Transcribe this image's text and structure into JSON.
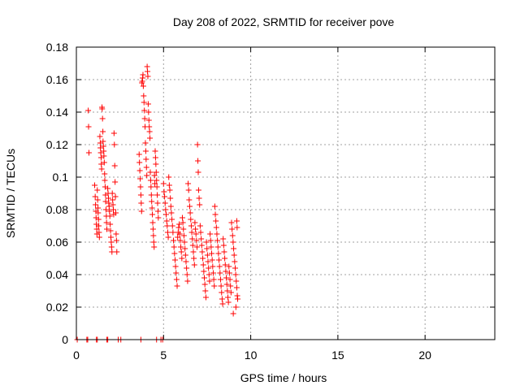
{
  "chart_data": {
    "type": "scatter",
    "title": "Day 208 of 2022, SRMTID for receiver pove",
    "xlabel": "GPS time / hours",
    "ylabel": "SRMTID / TECUs",
    "xlim": [
      0,
      24
    ],
    "ylim": [
      0,
      0.18
    ],
    "xticks": [
      0,
      5,
      10,
      15,
      20
    ],
    "xtick_labels": [
      "0",
      "5",
      "10",
      "15",
      "20"
    ],
    "yticks": [
      0,
      0.02,
      0.04,
      0.06,
      0.08,
      0.1,
      0.12,
      0.14,
      0.16,
      0.18
    ],
    "ytick_labels": [
      "0",
      "0.02",
      "0.04",
      "0.06",
      "0.08",
      "0.1",
      "0.12",
      "0.14",
      "0.16",
      "0.18"
    ],
    "grid": true,
    "marker": "+",
    "color": "#ff0000",
    "series": [
      {
        "name": "SRMTID",
        "points": [
          [
            0.05,
            0
          ],
          [
            0.6,
            0
          ],
          [
            0.65,
            0
          ],
          [
            1.15,
            0
          ],
          [
            1.2,
            0
          ],
          [
            1.75,
            0
          ],
          [
            1.8,
            0
          ],
          [
            2.4,
            0
          ],
          [
            2.55,
            0
          ],
          [
            3.7,
            0
          ],
          [
            4.6,
            0
          ],
          [
            4.85,
            0
          ],
          [
            4.95,
            0
          ],
          [
            0.68,
            0.141
          ],
          [
            0.7,
            0.131
          ],
          [
            0.72,
            0.115
          ],
          [
            1.05,
            0.095
          ],
          [
            1.08,
            0.088
          ],
          [
            1.1,
            0.083
          ],
          [
            1.12,
            0.079
          ],
          [
            1.13,
            0.075
          ],
          [
            1.15,
            0.071
          ],
          [
            1.17,
            0.068
          ],
          [
            1.18,
            0.065
          ],
          [
            1.2,
            0.092
          ],
          [
            1.22,
            0.086
          ],
          [
            1.24,
            0.081
          ],
          [
            1.25,
            0.078
          ],
          [
            1.27,
            0.074
          ],
          [
            1.28,
            0.07
          ],
          [
            1.3,
            0.066
          ],
          [
            1.32,
            0.063
          ],
          [
            1.35,
            0.125
          ],
          [
            1.37,
            0.121
          ],
          [
            1.38,
            0.118
          ],
          [
            1.4,
            0.115
          ],
          [
            1.42,
            0.112
          ],
          [
            1.43,
            0.108
          ],
          [
            1.45,
            0.105
          ],
          [
            1.47,
            0.143
          ],
          [
            1.48,
            0.142
          ],
          [
            1.5,
            0.136
          ],
          [
            1.52,
            0.128
          ],
          [
            1.53,
            0.122
          ],
          [
            1.55,
            0.119
          ],
          [
            1.57,
            0.116
          ],
          [
            1.58,
            0.113
          ],
          [
            1.6,
            0.109
          ],
          [
            1.62,
            0.102
          ],
          [
            1.63,
            0.098
          ],
          [
            1.65,
            0.094
          ],
          [
            1.67,
            0.089
          ],
          [
            1.68,
            0.085
          ],
          [
            1.7,
            0.08
          ],
          [
            1.72,
            0.076
          ],
          [
            1.73,
            0.072
          ],
          [
            1.75,
            0.068
          ],
          [
            1.8,
            0.093
          ],
          [
            1.82,
            0.09
          ],
          [
            1.84,
            0.087
          ],
          [
            1.86,
            0.084
          ],
          [
            1.88,
            0.082
          ],
          [
            1.9,
            0.079
          ],
          [
            1.92,
            0.076
          ],
          [
            1.94,
            0.071
          ],
          [
            1.96,
            0.067
          ],
          [
            1.98,
            0.063
          ],
          [
            2.0,
            0.06
          ],
          [
            2.02,
            0.057
          ],
          [
            2.04,
            0.054
          ],
          [
            2.06,
            0.09
          ],
          [
            2.08,
            0.086
          ],
          [
            2.1,
            0.083
          ],
          [
            2.12,
            0.08
          ],
          [
            2.14,
            0.077
          ],
          [
            2.16,
            0.127
          ],
          [
            2.18,
            0.12
          ],
          [
            2.2,
            0.107
          ],
          [
            2.22,
            0.097
          ],
          [
            2.24,
            0.088
          ],
          [
            2.26,
            0.078
          ],
          [
            2.28,
            0.065
          ],
          [
            2.3,
            0.061
          ],
          [
            2.32,
            0.054
          ],
          [
            3.6,
            0.114
          ],
          [
            3.62,
            0.109
          ],
          [
            3.64,
            0.104
          ],
          [
            3.66,
            0.099
          ],
          [
            3.68,
            0.094
          ],
          [
            3.7,
            0.089
          ],
          [
            3.72,
            0.084
          ],
          [
            3.74,
            0.079
          ],
          [
            3.76,
            0.158
          ],
          [
            3.78,
            0.159
          ],
          [
            3.8,
            0.161
          ],
          [
            3.82,
            0.163
          ],
          [
            3.84,
            0.156
          ],
          [
            3.86,
            0.15
          ],
          [
            3.88,
            0.146
          ],
          [
            3.9,
            0.141
          ],
          [
            3.92,
            0.136
          ],
          [
            3.94,
            0.131
          ],
          [
            3.96,
            0.121
          ],
          [
            3.98,
            0.116
          ],
          [
            4.0,
            0.111
          ],
          [
            4.02,
            0.106
          ],
          [
            4.04,
            0.101
          ],
          [
            4.06,
            0.168
          ],
          [
            4.08,
            0.165
          ],
          [
            4.1,
            0.162
          ],
          [
            4.12,
            0.145
          ],
          [
            4.14,
            0.14
          ],
          [
            4.16,
            0.135
          ],
          [
            4.18,
            0.131
          ],
          [
            4.2,
            0.128
          ],
          [
            4.22,
            0.124
          ],
          [
            4.24,
            0.103
          ],
          [
            4.26,
            0.098
          ],
          [
            4.28,
            0.094
          ],
          [
            4.3,
            0.089
          ],
          [
            4.32,
            0.085
          ],
          [
            4.34,
            0.081
          ],
          [
            4.36,
            0.077
          ],
          [
            4.38,
            0.072
          ],
          [
            4.4,
            0.068
          ],
          [
            4.42,
            0.064
          ],
          [
            4.44,
            0.06
          ],
          [
            4.46,
            0.057
          ],
          [
            4.48,
            0.101
          ],
          [
            4.5,
            0.096
          ],
          [
            4.52,
            0.116
          ],
          [
            4.54,
            0.112
          ],
          [
            4.56,
            0.108
          ],
          [
            4.58,
            0.103
          ],
          [
            4.6,
            0.098
          ],
          [
            4.62,
            0.094
          ],
          [
            4.64,
            0.089
          ],
          [
            4.66,
            0.084
          ],
          [
            4.68,
            0.079
          ],
          [
            4.7,
            0.075
          ],
          [
            5.0,
            0.096
          ],
          [
            5.03,
            0.091
          ],
          [
            5.06,
            0.088
          ],
          [
            5.09,
            0.084
          ],
          [
            5.12,
            0.08
          ],
          [
            5.15,
            0.077
          ],
          [
            5.18,
            0.073
          ],
          [
            5.21,
            0.07
          ],
          [
            5.24,
            0.066
          ],
          [
            5.27,
            0.063
          ],
          [
            5.3,
            0.1
          ],
          [
            5.33,
            0.095
          ],
          [
            5.36,
            0.092
          ],
          [
            5.39,
            0.087
          ],
          [
            5.42,
            0.082
          ],
          [
            5.45,
            0.078
          ],
          [
            5.48,
            0.074
          ],
          [
            5.51,
            0.07
          ],
          [
            5.54,
            0.066
          ],
          [
            5.57,
            0.061
          ],
          [
            5.6,
            0.057
          ],
          [
            5.63,
            0.053
          ],
          [
            5.66,
            0.049
          ],
          [
            5.69,
            0.045
          ],
          [
            5.72,
            0.041
          ],
          [
            5.75,
            0.037
          ],
          [
            5.78,
            0.033
          ],
          [
            5.81,
            0.063
          ],
          [
            5.84,
            0.066
          ],
          [
            5.87,
            0.069
          ],
          [
            5.9,
            0.071
          ],
          [
            5.93,
            0.065
          ],
          [
            5.96,
            0.061
          ],
          [
            5.99,
            0.057
          ],
          [
            6.02,
            0.054
          ],
          [
            6.05,
            0.05
          ],
          [
            6.08,
            0.075
          ],
          [
            6.11,
            0.072
          ],
          [
            6.14,
            0.068
          ],
          [
            6.17,
            0.064
          ],
          [
            6.2,
            0.06
          ],
          [
            6.23,
            0.056
          ],
          [
            6.26,
            0.052
          ],
          [
            6.29,
            0.048
          ],
          [
            6.32,
            0.044
          ],
          [
            6.35,
            0.04
          ],
          [
            6.38,
            0.036
          ],
          [
            6.41,
            0.096
          ],
          [
            6.44,
            0.092
          ],
          [
            6.47,
            0.086
          ],
          [
            6.5,
            0.082
          ],
          [
            6.53,
            0.078
          ],
          [
            6.56,
            0.074
          ],
          [
            6.59,
            0.07
          ],
          [
            6.62,
            0.066
          ],
          [
            6.65,
            0.062
          ],
          [
            6.68,
            0.058
          ],
          [
            6.71,
            0.054
          ],
          [
            6.74,
            0.05
          ],
          [
            6.77,
            0.046
          ],
          [
            6.8,
            0.072
          ],
          [
            6.83,
            0.068
          ],
          [
            6.86,
            0.065
          ],
          [
            6.89,
            0.061
          ],
          [
            6.92,
            0.057
          ],
          [
            6.95,
            0.12
          ],
          [
            6.97,
            0.11
          ],
          [
            6.99,
            0.103
          ],
          [
            7.01,
            0.092
          ],
          [
            7.04,
            0.087
          ],
          [
            7.07,
            0.083
          ],
          [
            7.1,
            0.07
          ],
          [
            7.13,
            0.066
          ],
          [
            7.16,
            0.062
          ],
          [
            7.19,
            0.058
          ],
          [
            7.22,
            0.054
          ],
          [
            7.25,
            0.05
          ],
          [
            7.28,
            0.046
          ],
          [
            7.31,
            0.042
          ],
          [
            7.34,
            0.038
          ],
          [
            7.37,
            0.034
          ],
          [
            7.4,
            0.03
          ],
          [
            7.43,
            0.026
          ],
          [
            7.46,
            0.06
          ],
          [
            7.49,
            0.056
          ],
          [
            7.52,
            0.052
          ],
          [
            7.55,
            0.048
          ],
          [
            7.58,
            0.044
          ],
          [
            7.61,
            0.04
          ],
          [
            7.64,
            0.036
          ],
          [
            7.67,
            0.065
          ],
          [
            7.7,
            0.061
          ],
          [
            7.73,
            0.057
          ],
          [
            7.76,
            0.053
          ],
          [
            7.79,
            0.049
          ],
          [
            7.82,
            0.045
          ],
          [
            7.85,
            0.041
          ],
          [
            7.88,
            0.037
          ],
          [
            7.91,
            0.033
          ],
          [
            7.94,
            0.082
          ],
          [
            7.97,
            0.077
          ],
          [
            8.0,
            0.073
          ],
          [
            8.03,
            0.069
          ],
          [
            8.06,
            0.065
          ],
          [
            8.09,
            0.061
          ],
          [
            8.12,
            0.057
          ],
          [
            8.15,
            0.053
          ],
          [
            8.18,
            0.049
          ],
          [
            8.21,
            0.045
          ],
          [
            8.24,
            0.041
          ],
          [
            8.27,
            0.037
          ],
          [
            8.3,
            0.033
          ],
          [
            8.33,
            0.029
          ],
          [
            8.36,
            0.025
          ],
          [
            8.39,
            0.022
          ],
          [
            8.42,
            0.062
          ],
          [
            8.45,
            0.058
          ],
          [
            8.48,
            0.054
          ],
          [
            8.51,
            0.05
          ],
          [
            8.54,
            0.046
          ],
          [
            8.57,
            0.042
          ],
          [
            8.6,
            0.038
          ],
          [
            8.63,
            0.034
          ],
          [
            8.66,
            0.03
          ],
          [
            8.69,
            0.026
          ],
          [
            8.72,
            0.023
          ],
          [
            8.75,
            0.045
          ],
          [
            8.78,
            0.041
          ],
          [
            8.81,
            0.037
          ],
          [
            8.84,
            0.033
          ],
          [
            8.87,
            0.029
          ],
          [
            8.9,
            0.072
          ],
          [
            8.93,
            0.068
          ],
          [
            8.96,
            0.064
          ],
          [
            8.99,
            0.06
          ],
          [
            9.02,
            0.056
          ],
          [
            9.05,
            0.052
          ],
          [
            9.08,
            0.048
          ],
          [
            9.11,
            0.044
          ],
          [
            9.14,
            0.04
          ],
          [
            9.17,
            0.036
          ],
          [
            9.2,
            0.032
          ],
          [
            9.23,
            0.027
          ],
          [
            9.0,
            0.016
          ],
          [
            9.15,
            0.02
          ],
          [
            9.25,
            0.025
          ],
          [
            9.2,
            0.073
          ],
          [
            9.22,
            0.069
          ]
        ]
      }
    ]
  }
}
